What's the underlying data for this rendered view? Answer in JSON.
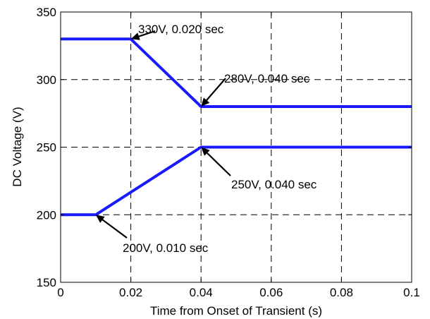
{
  "chart_data": {
    "type": "line",
    "title": "",
    "xlabel": "Time from Onset of Transient (s)",
    "ylabel": "DC Voltage (V)",
    "xlim": [
      0,
      0.1
    ],
    "ylim": [
      150,
      350
    ],
    "xticks": [
      0,
      0.02,
      0.04,
      0.06,
      0.08,
      0.1
    ],
    "xtick_labels": [
      "0",
      "0.02",
      "0.04",
      "0.06",
      "0.08",
      "0.1"
    ],
    "yticks": [
      150,
      200,
      250,
      300,
      350
    ],
    "ytick_labels": [
      "150",
      "200",
      "250",
      "300",
      "350"
    ],
    "grid": true,
    "line_color": "#1a1aff",
    "series": [
      {
        "x": [
          0,
          0.02,
          0.04,
          0.1
        ],
        "y": [
          330,
          330,
          280,
          280
        ]
      },
      {
        "x": [
          0,
          0.01,
          0.04,
          0.1
        ],
        "y": [
          200,
          200,
          250,
          250
        ]
      }
    ],
    "annotations": [
      {
        "text": "330V, 0.020 sec",
        "point": [
          0.02,
          330
        ]
      },
      {
        "text": "280V, 0.040 sec",
        "point": [
          0.04,
          280
        ]
      },
      {
        "text": "250V, 0.040 sec",
        "point": [
          0.04,
          250
        ]
      },
      {
        "text": "200V, 0.010 sec",
        "point": [
          0.01,
          200
        ]
      }
    ]
  }
}
